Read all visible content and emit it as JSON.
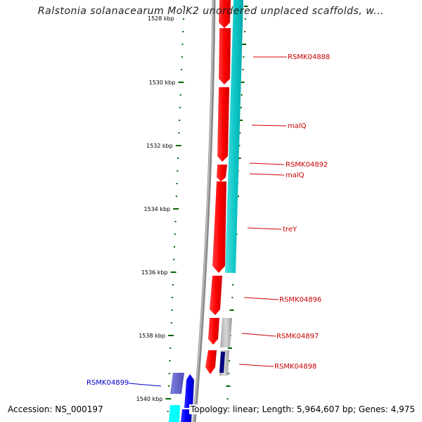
{
  "title": "Ralstonia solanacearum MolK2 unordered unplaced scaffolds, w...",
  "top_tick_label": "1528 kbp",
  "tick_labels": [
    "1530 kbp",
    "1532 kbp",
    "1534 kbp",
    "1536 kbp",
    "1538 kbp",
    "1540 kbp"
  ],
  "genes": [
    {
      "label": "RSMK04888",
      "color": "#cc0000"
    },
    {
      "label": "malQ",
      "color": "#cc0000"
    },
    {
      "label": "RSMK04892",
      "color": "#cc0000"
    },
    {
      "label": "malQ",
      "color": "#cc0000"
    },
    {
      "label": "treY",
      "color": "#cc0000"
    },
    {
      "label": "RSMK04896",
      "color": "#cc0000"
    },
    {
      "label": "RSMK04897",
      "color": "#cc0000"
    },
    {
      "label": "RSMK04898",
      "color": "#cc0000"
    },
    {
      "label": "RSMK04899",
      "color": "#0000cc"
    }
  ],
  "footer": {
    "accession": "Accession: NS_000197",
    "summary": "Topology: linear; Length: 5,964,607 bp; Genes: 4,975"
  },
  "colors": {
    "forward_gene": "#ff0000",
    "reverse_gene": "#0000ff",
    "cds_forward": "#00cccc",
    "cds_reverse": "#00ffff",
    "tick": "#006600",
    "backbone": "#888888",
    "other_feature": "#bbbbbb"
  }
}
